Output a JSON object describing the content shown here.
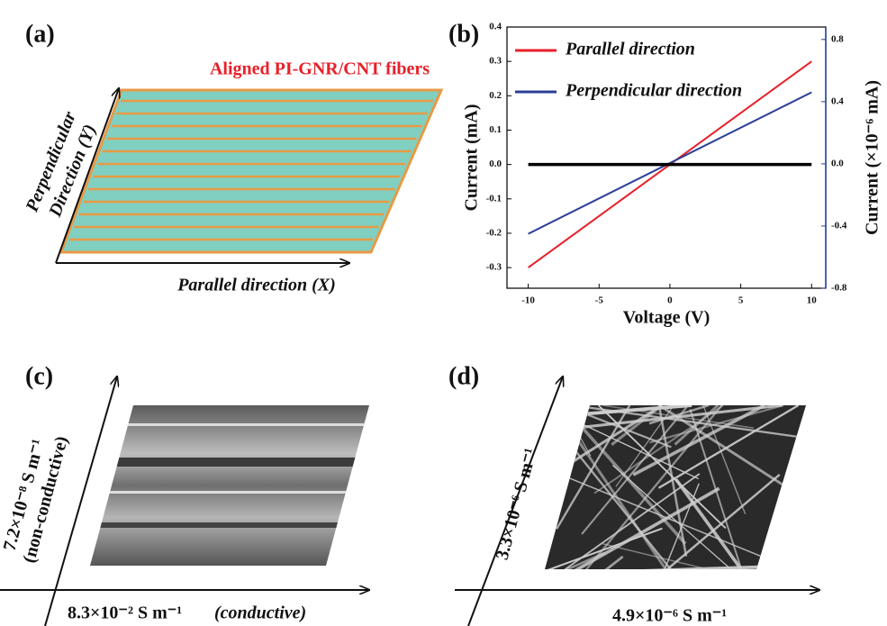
{
  "panel_a": {
    "label": "(a)",
    "title": "Aligned PI-GNR/CNT fibers",
    "y_axis_line1": "Perpendicular",
    "y_axis_line2": "Direction (Y)",
    "x_axis": "Parallel direction (X)"
  },
  "chart_data": {
    "type": "line",
    "label": "(b)",
    "x_label": "Voltage (V)",
    "y_label": "Current (mA)",
    "y2_label": "Current (×10⁻⁶ mA)",
    "x": [
      -10,
      10
    ],
    "xlim": [
      -11.5,
      11
    ],
    "xticks": [
      -10,
      -5,
      0,
      5,
      10
    ],
    "ylim": [
      -0.36,
      0.4
    ],
    "yticks": [
      -0.3,
      -0.2,
      -0.1,
      {
        "value": 0,
        "label": "0.0"
      },
      0.1,
      0.2,
      0.3,
      0.4
    ],
    "y2lim": [
      -0.8,
      0.88
    ],
    "y2ticks": [
      -0.8,
      -0.4,
      {
        "value": 0,
        "label": "0.0"
      },
      0.4,
      0.8
    ],
    "series": [
      {
        "name": "Parallel direction",
        "color": "#e8202a",
        "values": [
          -0.3,
          0.3
        ]
      },
      {
        "name": "Perpendicular direction",
        "color": "#2a3f95",
        "values": [
          -0.45,
          0.46
        ],
        "axis": "y2"
      },
      {
        "color": "#000000",
        "values": [
          0,
          0
        ]
      }
    ]
  },
  "panel_c": {
    "label": "(c)",
    "y_text_line1": "7.2×10⁻⁸ S m⁻¹",
    "y_text_line2": "(non-conductive)",
    "x_text": "8.3×10⁻² S m⁻¹",
    "x_note": "(conductive)"
  },
  "panel_d": {
    "label": "(d)",
    "y_text": "3.3×10⁻⁶ S m⁻¹",
    "x_text": "4.9×10⁻⁶ S m⁻¹"
  }
}
